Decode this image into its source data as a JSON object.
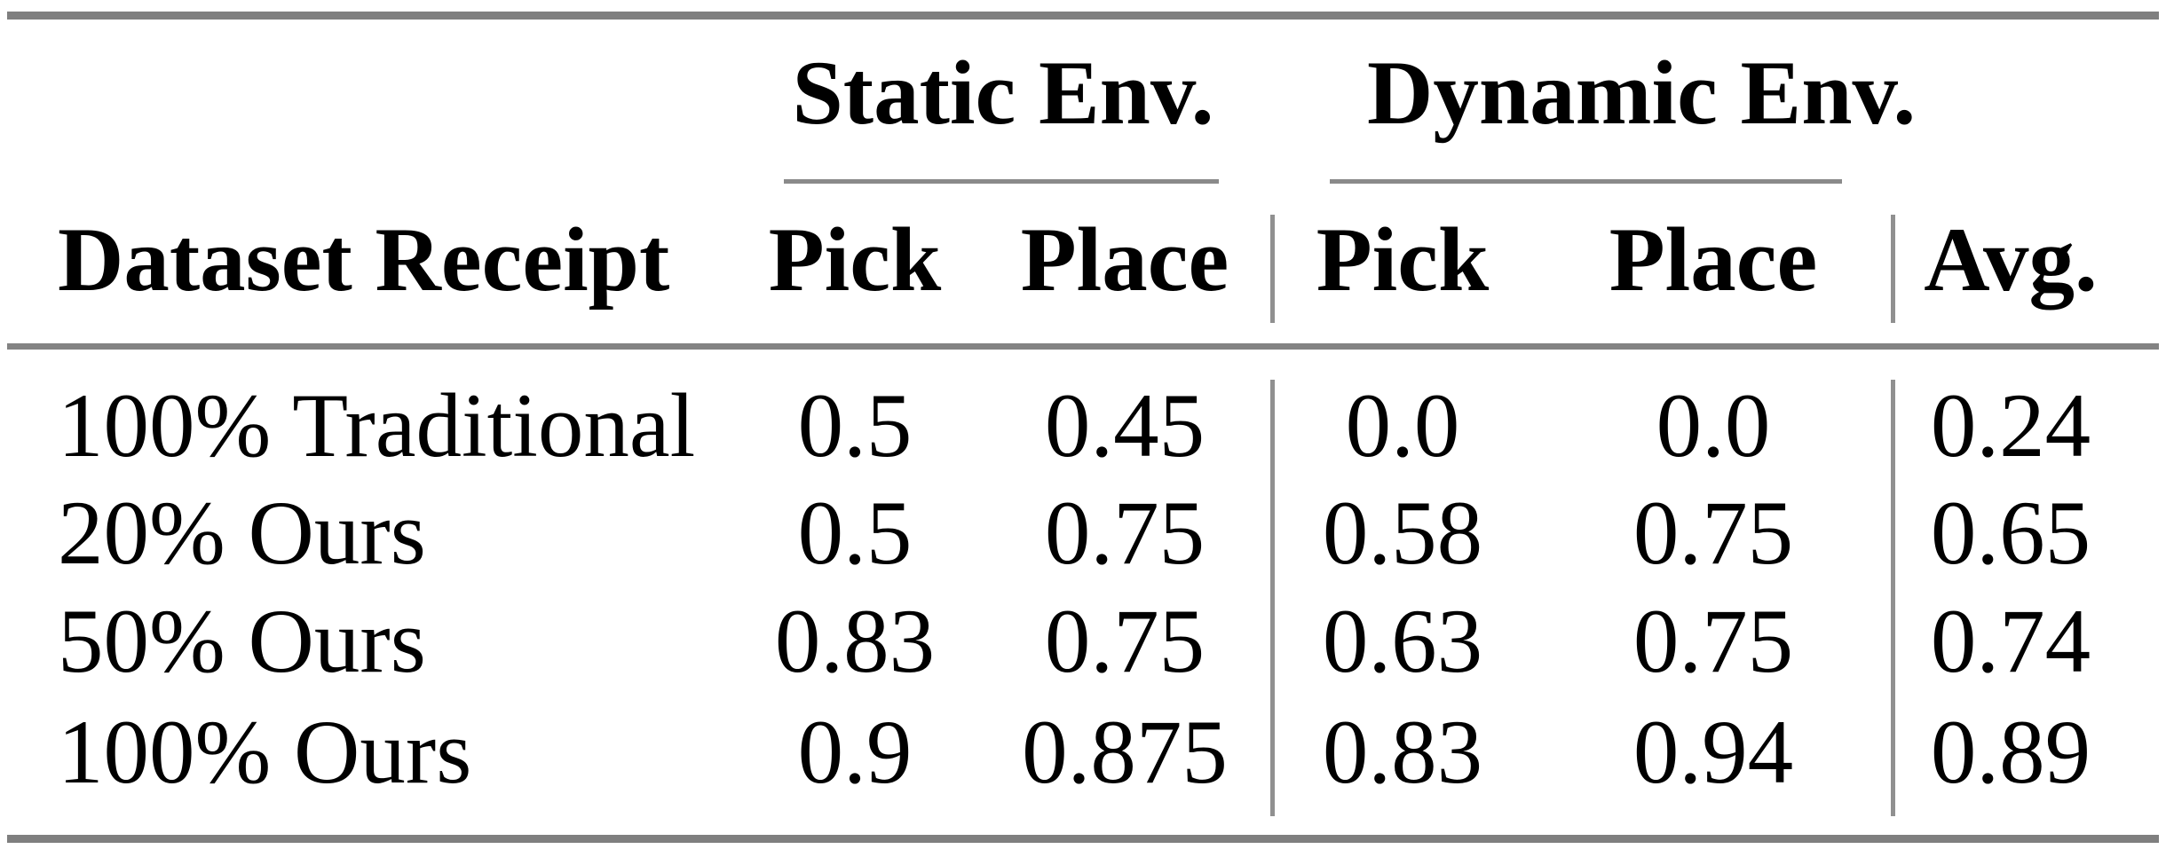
{
  "table": {
    "groups": [
      {
        "label": "Static Env."
      },
      {
        "label": "Dynamic Env."
      }
    ],
    "columns": [
      "Dataset Receipt",
      "Pick",
      "Place",
      "Pick",
      "Place",
      "Avg."
    ],
    "rows": [
      {
        "label": "100% Traditional",
        "values": [
          "0.5",
          "0.45",
          "0.0",
          "0.0",
          "0.24"
        ]
      },
      {
        "label": "20% Ours",
        "values": [
          "0.5",
          "0.75",
          "0.58",
          "0.75",
          "0.65"
        ]
      },
      {
        "label": "50% Ours",
        "values": [
          "0.83",
          "0.75",
          "0.63",
          "0.75",
          "0.74"
        ]
      },
      {
        "label": "100% Ours",
        "values": [
          "0.9",
          "0.875",
          "0.83",
          "0.94",
          "0.89"
        ]
      }
    ],
    "colors": {
      "text": "#000000",
      "rule": "#7f7f7f",
      "divider": "#909090",
      "background": "#ffffff"
    }
  }
}
